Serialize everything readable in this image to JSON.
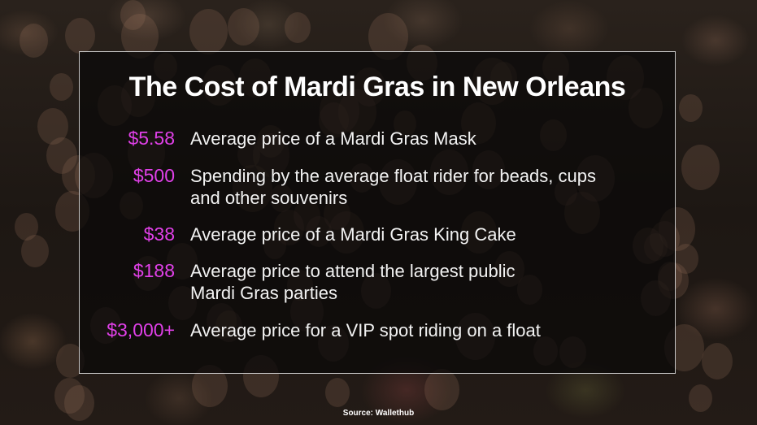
{
  "title": "The Cost of Mardi Gras in New Orleans",
  "items": [
    {
      "price": "$5.58",
      "desc_lines": [
        "Average price of a Mardi Gras Mask"
      ]
    },
    {
      "price": "$500",
      "desc_lines": [
        "Spending by the average float rider for beads, cups",
        "and other souvenirs"
      ]
    },
    {
      "price": "$38",
      "desc_lines": [
        "Average price of a Mardi Gras King Cake"
      ]
    },
    {
      "price": "$188",
      "desc_lines": [
        "Average price to attend the largest public",
        "Mardi Gras parties"
      ]
    },
    {
      "price": "$3,000+",
      "desc_lines": [
        "Average price for a VIP spot riding on a float"
      ]
    }
  ],
  "source": "Source: Wallethub",
  "colors": {
    "price": "#e040e8",
    "text": "#f2f2f2",
    "panel_border": "#ffffff"
  }
}
